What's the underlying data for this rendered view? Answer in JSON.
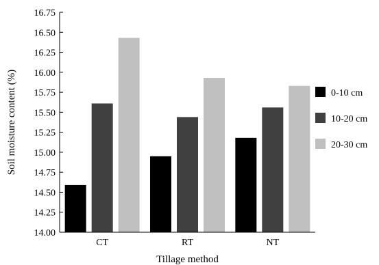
{
  "chart_data": {
    "type": "bar",
    "title": "",
    "xlabel": "Tillage method",
    "ylabel": "Soil moisture content (%)",
    "categories": [
      "CT",
      "RT",
      "NT"
    ],
    "ylim": [
      14.0,
      16.75
    ],
    "yticks": [
      "14.00",
      "14.25",
      "14.50",
      "14.75",
      "15.00",
      "15.25",
      "15.50",
      "15.75",
      "16.00",
      "16.25",
      "16.50",
      "16.75"
    ],
    "series": [
      {
        "name": "0-10 cm",
        "color": "#000000",
        "values": [
          14.59,
          14.95,
          15.18
        ]
      },
      {
        "name": "10-20 cm",
        "color": "#404040",
        "values": [
          15.61,
          15.44,
          15.56
        ]
      },
      {
        "name": "20-30 cm",
        "color": "#c0c0c0",
        "values": [
          16.43,
          15.93,
          15.83
        ]
      }
    ],
    "grid": false,
    "legend": "right"
  }
}
